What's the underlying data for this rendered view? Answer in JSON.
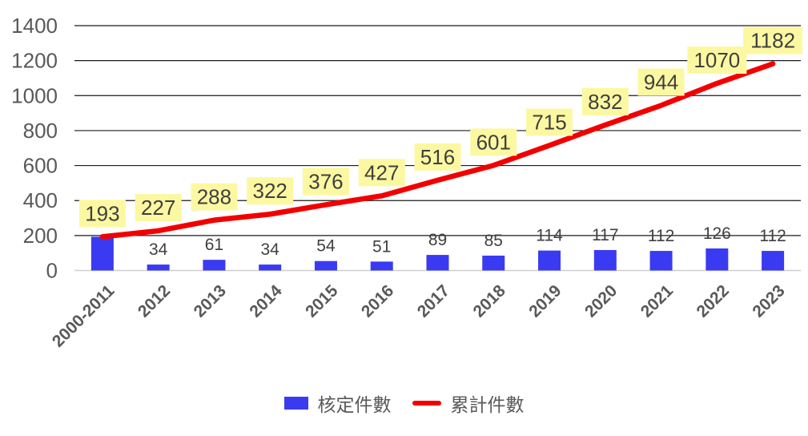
{
  "chart_data": {
    "type": "combo-bar-line",
    "title": "",
    "categories": [
      "2000-2011",
      "2012",
      "2013",
      "2014",
      "2015",
      "2016",
      "2017",
      "2018",
      "2019",
      "2020",
      "2021",
      "2022",
      "2023"
    ],
    "series": [
      {
        "name": "核定件數",
        "type": "bar",
        "color": "#3a3af2",
        "values": [
          193,
          34,
          61,
          34,
          54,
          51,
          89,
          85,
          114,
          117,
          112,
          126,
          112
        ],
        "data_labels": [
          "",
          "34",
          "61",
          "34",
          "54",
          "51",
          "89",
          "85",
          "114",
          "117",
          "112",
          "126",
          "112"
        ]
      },
      {
        "name": "累計件數",
        "type": "line",
        "color": "#f20000",
        "values": [
          193,
          227,
          288,
          322,
          376,
          427,
          516,
          601,
          715,
          832,
          944,
          1070,
          1182
        ],
        "data_labels": [
          "193",
          "227",
          "288",
          "322",
          "376",
          "427",
          "516",
          "601",
          "715",
          "832",
          "944",
          "1070",
          "1182"
        ],
        "label_background": "#fcf8a2"
      }
    ],
    "y_axis": {
      "min": 0,
      "max": 1400,
      "step": 200,
      "tick_labels": [
        "0",
        "200",
        "400",
        "600",
        "800",
        "1000",
        "1200",
        "1400"
      ]
    },
    "x_axis": {
      "label_rotation_deg": -45
    },
    "grid": true,
    "legend_position": "bottom",
    "colors": {
      "gridline": "#1a1a1a",
      "baseline": "#cfcfcf",
      "axis_text": "#595959",
      "data_label_text": "#404040"
    }
  }
}
